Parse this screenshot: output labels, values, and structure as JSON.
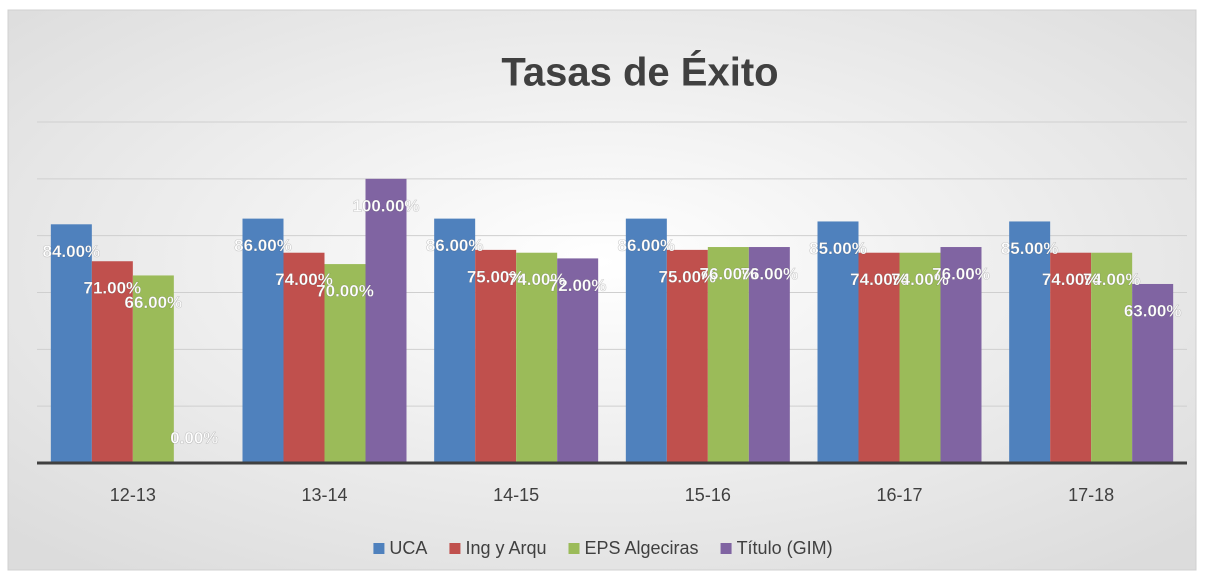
{
  "chart_data": {
    "type": "bar",
    "title": "Tasas de Éxito",
    "categories": [
      "12-13",
      "13-14",
      "14-15",
      "15-16",
      "16-17",
      "17-18"
    ],
    "series": [
      {
        "name": "UCA",
        "color": "#4f81bd",
        "values": [
          84,
          86,
          86,
          86,
          85,
          85
        ],
        "value_labels": [
          "84.00%",
          "86.00%",
          "86.00%",
          "86.00%",
          "85.00%",
          "85.00%"
        ]
      },
      {
        "name": "Ing y Arqu",
        "color": "#c0504d",
        "values": [
          71,
          74,
          75,
          75,
          74,
          74
        ],
        "value_labels": [
          "71.00%",
          "74.00%",
          "75.00%",
          "75.00%",
          "74.00%",
          "74.00%"
        ]
      },
      {
        "name": "EPS Algeciras",
        "color": "#9bbb59",
        "values": [
          66,
          70,
          74,
          76,
          74,
          74
        ],
        "value_labels": [
          "66.00%",
          "70.00%",
          "74.00%",
          "76.00%",
          "74.00%",
          "74.00%"
        ]
      },
      {
        "name": "Título (GIM)",
        "color": "#8064a2",
        "values": [
          0,
          100,
          72,
          76,
          76,
          63
        ],
        "value_labels": [
          "0.00%",
          "100.00%",
          "72.00%",
          "76.00%",
          "76.00%",
          "63.00%"
        ]
      }
    ],
    "ylim": [
      0,
      120
    ],
    "yticks": [
      0,
      20,
      40,
      60,
      80,
      100,
      120
    ],
    "grid": true,
    "legend": "bottom"
  }
}
